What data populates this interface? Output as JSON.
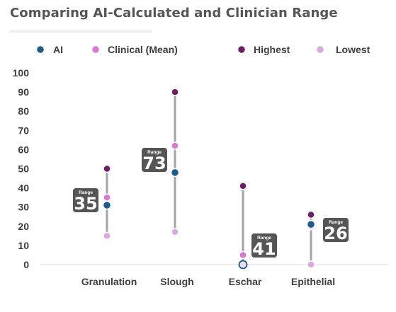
{
  "title": "Comparing AI-Calculated and Clinician Range",
  "legend": [
    {
      "label": "AI",
      "color": "#1e5a8a"
    },
    {
      "label": "Clinical (Mean)",
      "color": "#d87ad2"
    },
    {
      "label": "Highest",
      "color": "#6e1e63"
    },
    {
      "label": "Lowest",
      "color": "#dca9dc"
    }
  ],
  "range_caption": "Range",
  "chart_data": {
    "type": "dot-range",
    "title": "Comparing AI-Calculated and Clinician Range",
    "categories": [
      "Granulation",
      "Slough",
      "Eschar",
      "Epithelial"
    ],
    "y_ticks": [
      "0",
      "10",
      "20",
      "30",
      "40",
      "50",
      "60",
      "70",
      "80",
      "90",
      "100"
    ],
    "ylim": [
      0,
      100
    ],
    "grid": false,
    "legend_position": "top",
    "series": [
      {
        "name": "AI",
        "values": [
          31,
          48,
          0,
          21
        ]
      },
      {
        "name": "Clinical (Mean)",
        "values": [
          35,
          62,
          5,
          20
        ]
      },
      {
        "name": "Highest",
        "values": [
          50,
          90,
          41,
          26
        ]
      },
      {
        "name": "Lowest",
        "values": [
          15,
          17,
          0,
          0
        ]
      }
    ],
    "ranges": [
      "35",
      "73",
      "41",
      "26"
    ],
    "colors": {
      "AI": "#1e5a8a",
      "Clinical (Mean)": "#d87ad2",
      "Highest": "#6e1e63",
      "Lowest": "#dca9dc",
      "range_line": "#a5a5a5",
      "badge": "#555555"
    }
  }
}
